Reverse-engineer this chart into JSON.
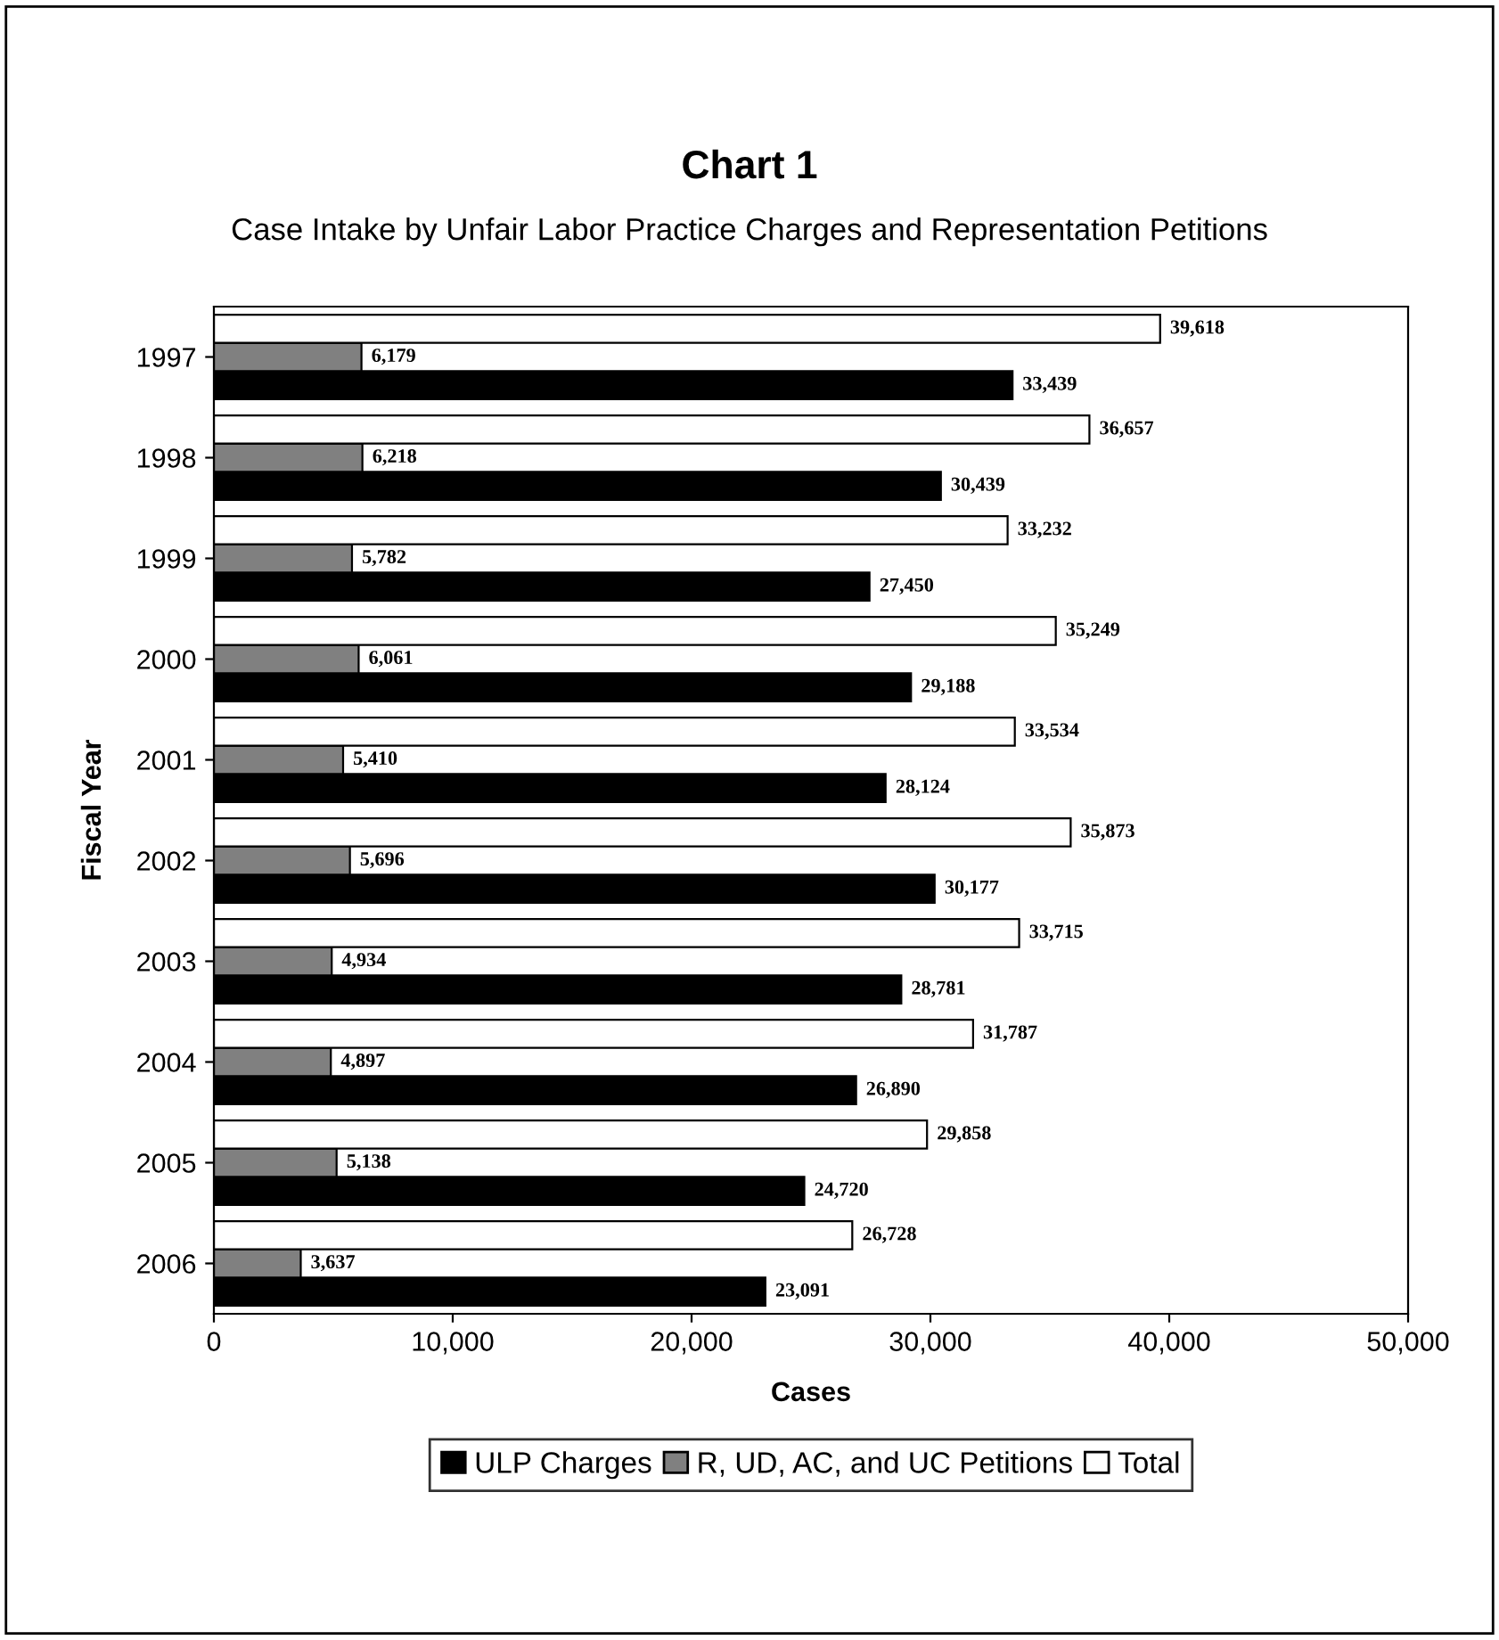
{
  "chart_data": {
    "type": "bar",
    "orientation": "horizontal",
    "title": "Chart 1",
    "subtitle": "Case Intake by Unfair Labor Practice Charges and Representation Petitions",
    "xlabel": "Cases",
    "ylabel": "Fiscal Year",
    "categories": [
      "1997",
      "1998",
      "1999",
      "2000",
      "2001",
      "2002",
      "2003",
      "2004",
      "2005",
      "2006"
    ],
    "series": [
      {
        "name": "ULP Charges",
        "color": "#000000",
        "values": [
          33439,
          30439,
          27450,
          29188,
          28124,
          30177,
          28781,
          26890,
          24720,
          23091
        ],
        "value_labels": [
          "33,439",
          "30,439",
          "27,450",
          "29,188",
          "28,124",
          "30,177",
          "28,781",
          "26,890",
          "24,720",
          "23,091"
        ]
      },
      {
        "name": "R, UD, AC, and UC Petitions",
        "color": "#808080",
        "values": [
          6179,
          6218,
          5782,
          6061,
          5410,
          5696,
          4934,
          4897,
          5138,
          3637
        ],
        "value_labels": [
          "6,179",
          "6,218",
          "5,782",
          "6,061",
          "5,410",
          "5,696",
          "4,934",
          "4,897",
          "5,138",
          "3,637"
        ]
      },
      {
        "name": "Total",
        "color": "#ffffff",
        "values": [
          39618,
          36657,
          33232,
          35249,
          33534,
          35873,
          33715,
          31787,
          29858,
          26728
        ],
        "value_labels": [
          "39,618",
          "36,657",
          "33,232",
          "35,249",
          "33,534",
          "35,873",
          "33,715",
          "31,787",
          "29,858",
          "26,728"
        ]
      }
    ],
    "xlim": [
      0,
      50000
    ],
    "xticks": [
      {
        "value": 0,
        "label": "0"
      },
      {
        "value": 10000,
        "label": "10,000"
      },
      {
        "value": 20000,
        "label": "20,000"
      },
      {
        "value": 30000,
        "label": "30,000"
      },
      {
        "value": 40000,
        "label": "40,000"
      },
      {
        "value": 50000,
        "label": "50,000"
      }
    ],
    "grid": false,
    "legend": "bottom"
  }
}
